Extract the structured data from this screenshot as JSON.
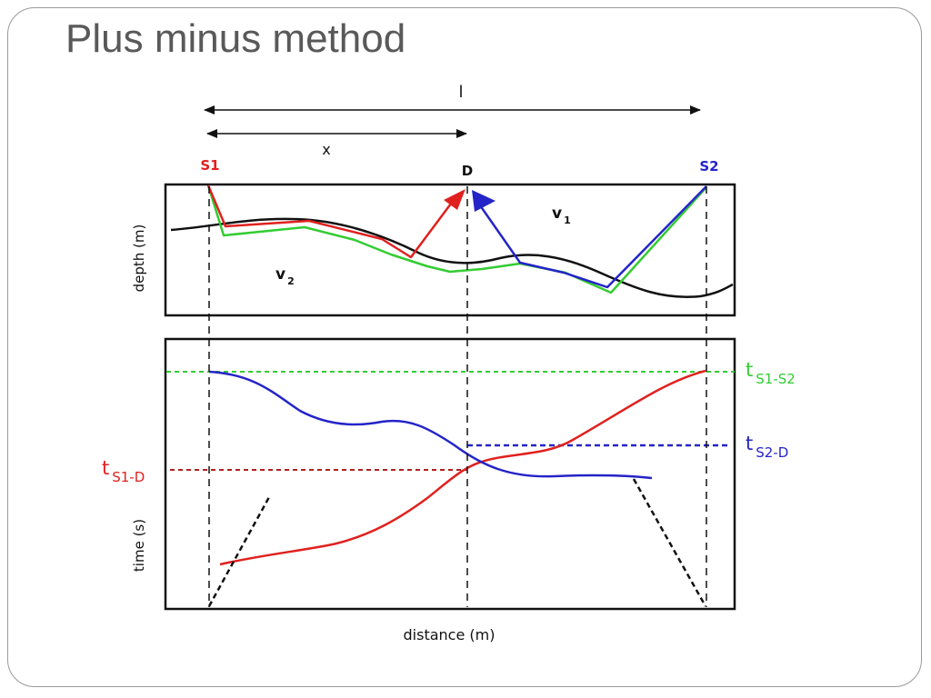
{
  "slide": {
    "title": "Plus minus method"
  },
  "diagram": {
    "labels": {
      "l": "l",
      "x": "x",
      "s1": "S1",
      "s2": "S2",
      "d": "D",
      "v1": "v",
      "v1_sub": "1",
      "v2": "v",
      "v2_sub": "2",
      "depth_axis": "depth (m)",
      "time_axis": "time (s)",
      "distance_axis": "distance (m)",
      "t_s1_s2": "t",
      "t_s1_s2_sub": "S1-S2",
      "t_s2_d": "t",
      "t_s2_d_sub": "S2-D",
      "t_s1_d": "t",
      "t_s1_d_sub": "S1-D"
    },
    "colors": {
      "s1": "#e0211f",
      "s2": "#2424c8",
      "green": "#33cc33",
      "interface": "#111111"
    }
  }
}
